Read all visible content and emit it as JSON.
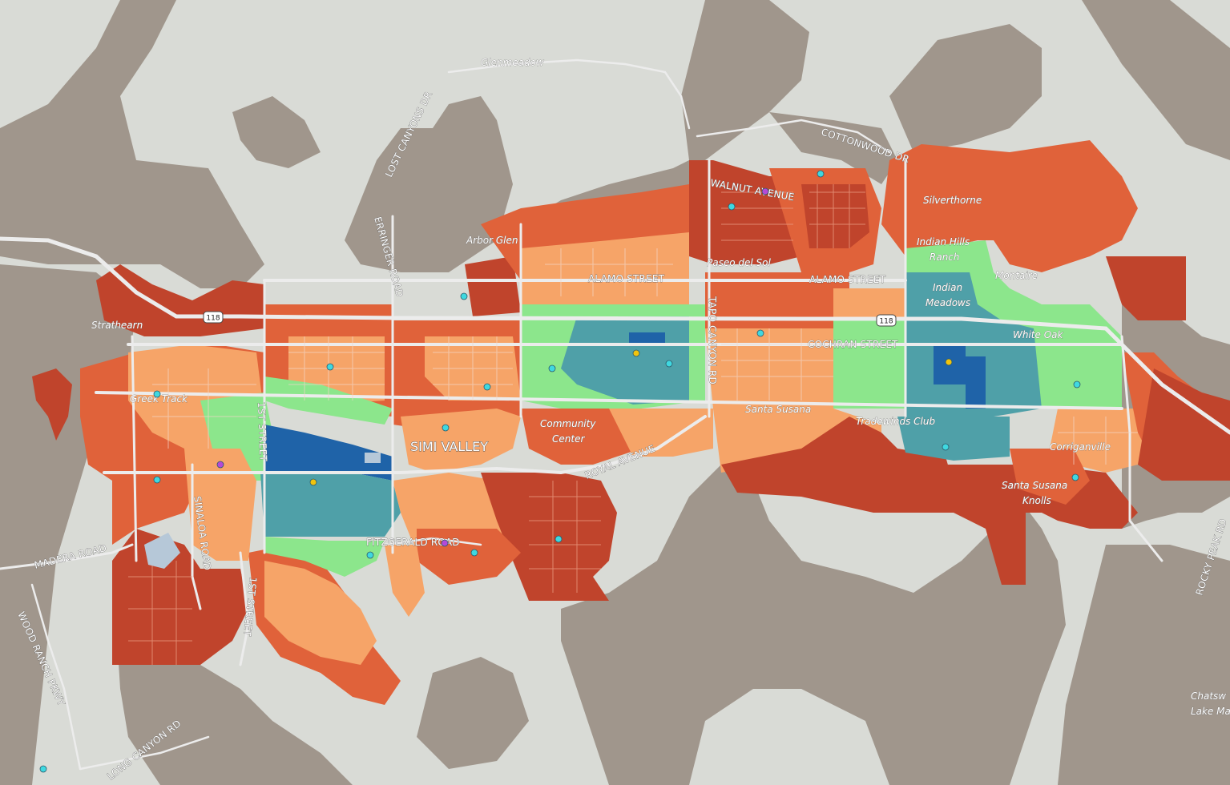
{
  "map": {
    "city_label": "SIMI VALLEY",
    "highway_shields": [
      "118",
      "118"
    ],
    "colors": {
      "background": "#d9dbd6",
      "terrain": "#a0968c",
      "class_dark_red": "#c0442c",
      "class_red_orange": "#e0623a",
      "class_light_orange": "#f6a468",
      "class_light_green": "#8ce68c",
      "class_teal": "#4fa0a8",
      "class_blue": "#1f63a8",
      "road": "#e8e8e8",
      "marker_cyan": "#3fd8e0",
      "marker_yellow": "#f2c40c",
      "marker_purple": "#b44ad8"
    },
    "place_labels": [
      "Glenmeadow",
      "Arbor Glen",
      "Strathearn",
      "Greek Track",
      "Community",
      "Center",
      "Paseo del Sol",
      "Silverthorne",
      "Indian Hills",
      "Ranch",
      "Montaire",
      "Indian",
      "Meadows",
      "White Oak",
      "Tradewinds Club",
      "Corriganville",
      "Santa Susana",
      "Knolls",
      "Chatsw",
      "Lake Ma"
    ],
    "street_labels": [
      "LOST CANYONS DR",
      "ERRINGER ROAD",
      "WALNUT AVENUE",
      "COTTONWOOD DR",
      "ALAMO STREET",
      "ALAMO STREET",
      "TAPO CANYON RD",
      "COCHRAN STREET",
      "Santa Susana",
      "1ST STREET",
      "ROYAL AVENUE",
      "FITZGERALD ROAD",
      "SINALOA ROAD",
      "MADERA ROAD",
      "1ST STREET",
      "WOOD RANCH PKWY",
      "LONG CANYON RD",
      "ROCKY PEAK RD"
    ]
  }
}
